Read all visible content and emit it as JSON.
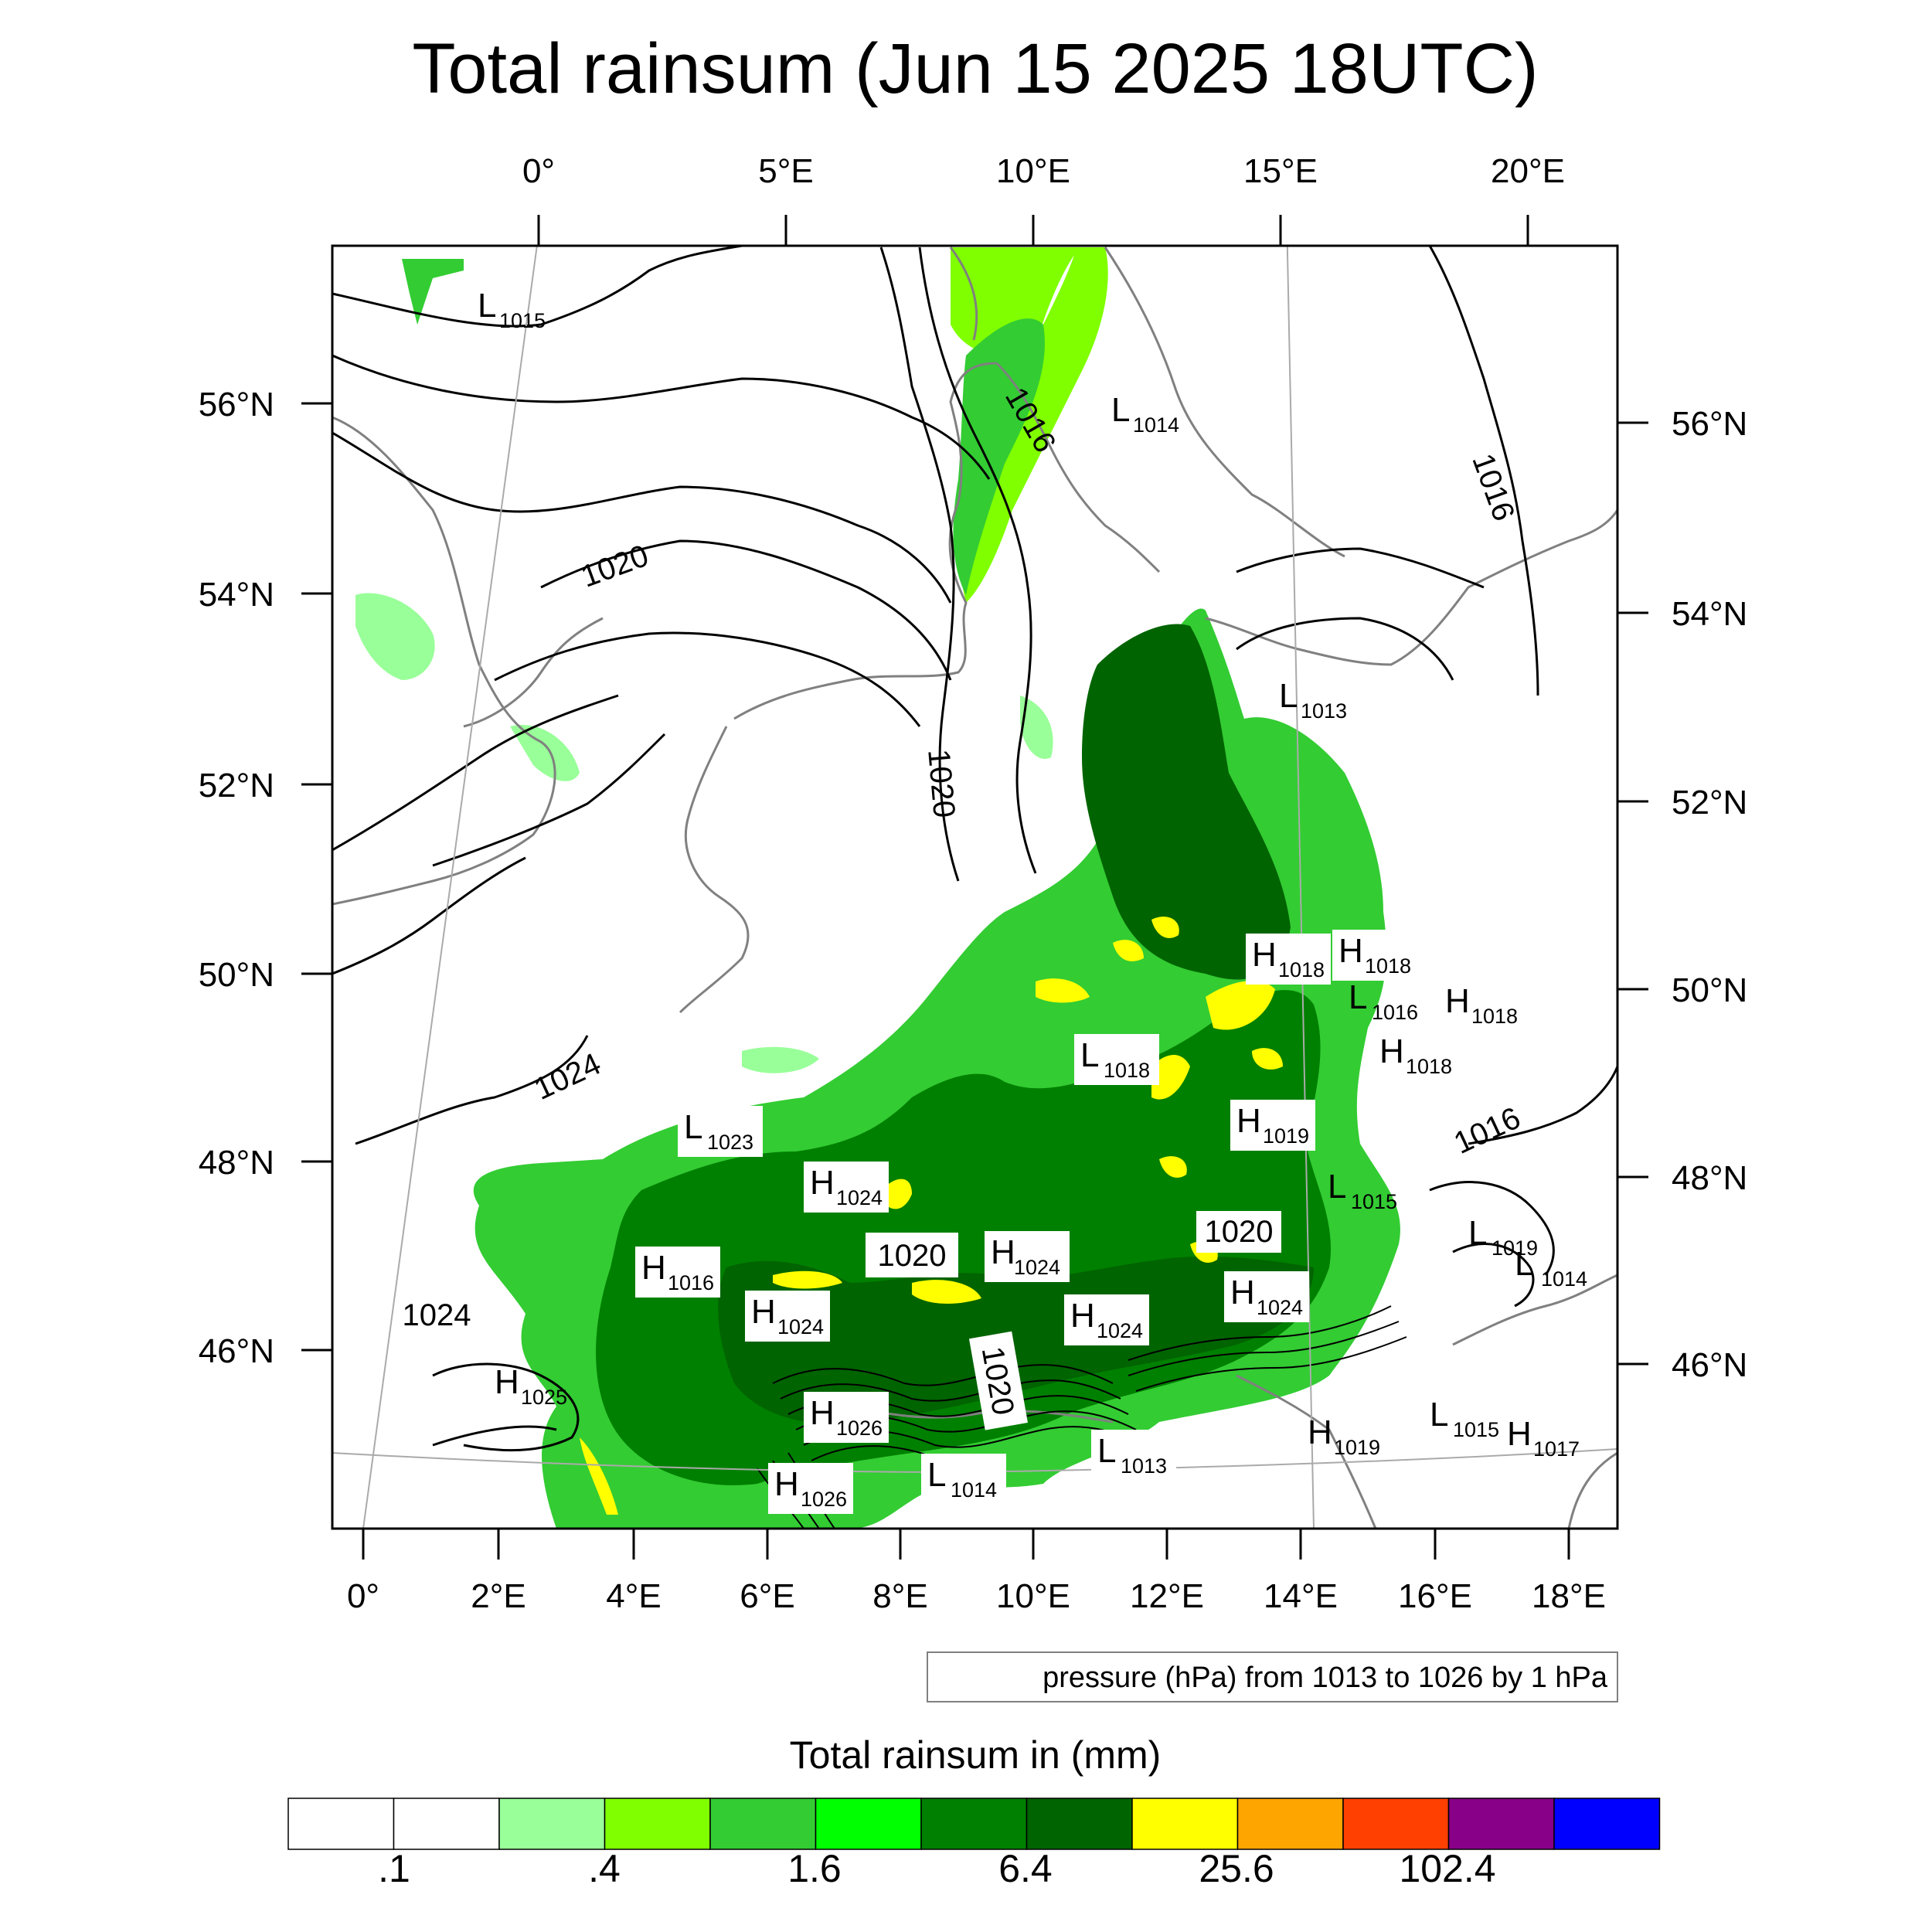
{
  "title": "Total rainsum (Jun 15 2025 18UTC)",
  "top_lon_labels": [
    "0°",
    "5°E",
    "10°E",
    "15°E",
    "20°E"
  ],
  "bottom_lon_labels": [
    "0°",
    "2°E",
    "4°E",
    "6°E",
    "8°E",
    "10°E",
    "12°E",
    "14°E",
    "16°E",
    "18°E"
  ],
  "left_lat_labels": [
    "56°N",
    "54°N",
    "52°N",
    "50°N",
    "48°N",
    "46°N"
  ],
  "right_lat_labels": [
    "56°N",
    "54°N",
    "52°N",
    "50°N",
    "48°N",
    "46°N"
  ],
  "isobar_labels": [
    "1016",
    "1020",
    "1016",
    "1020",
    "1024",
    "1024",
    "1016",
    "1020",
    "1020",
    "1020"
  ],
  "pressure_centers": [
    {
      "type": "L",
      "value": "1015"
    },
    {
      "type": "L",
      "value": "1014"
    },
    {
      "type": "L",
      "value": "1013"
    },
    {
      "type": "H",
      "value": "1018"
    },
    {
      "type": "H",
      "value": "1018"
    },
    {
      "type": "L",
      "value": "1016"
    },
    {
      "type": "H",
      "value": "1018"
    },
    {
      "type": "L",
      "value": "1018"
    },
    {
      "type": "H",
      "value": "1018"
    },
    {
      "type": "H",
      "value": "1019"
    },
    {
      "type": "L",
      "value": "1023"
    },
    {
      "type": "H",
      "value": "1024"
    },
    {
      "type": "L",
      "value": "1015"
    },
    {
      "type": "H",
      "value": "1024"
    },
    {
      "type": "L",
      "value": "1019"
    },
    {
      "type": "L",
      "value": "1014"
    },
    {
      "type": "H",
      "value": "1016"
    },
    {
      "type": "H",
      "value": "1024"
    },
    {
      "type": "H",
      "value": "1024"
    },
    {
      "type": "H",
      "value": "1024"
    },
    {
      "type": "H",
      "value": "1025"
    },
    {
      "type": "H",
      "value": "1026"
    },
    {
      "type": "L",
      "value": "1013"
    },
    {
      "type": "H",
      "value": "1019"
    },
    {
      "type": "L",
      "value": "1015"
    },
    {
      "type": "H",
      "value": "1017"
    },
    {
      "type": "L",
      "value": "1014"
    },
    {
      "type": "H",
      "value": "1026"
    }
  ],
  "pressure_note": "pressure (hPa) from 1013 to 1026 by 1 hPa",
  "colorbar": {
    "title": "Total rainsum in (mm)",
    "colors": [
      "#ffffff",
      "#ffffff",
      "#99ff99",
      "#80ff00",
      "#33cc33",
      "#00ff00",
      "#008000",
      "#006400",
      "#ffff00",
      "#ffa500",
      "#ff4000",
      "#880088",
      "#0000ff"
    ],
    "labels": [
      ".1",
      ".4",
      "1.6",
      "6.4",
      "25.6",
      "102.4"
    ]
  }
}
